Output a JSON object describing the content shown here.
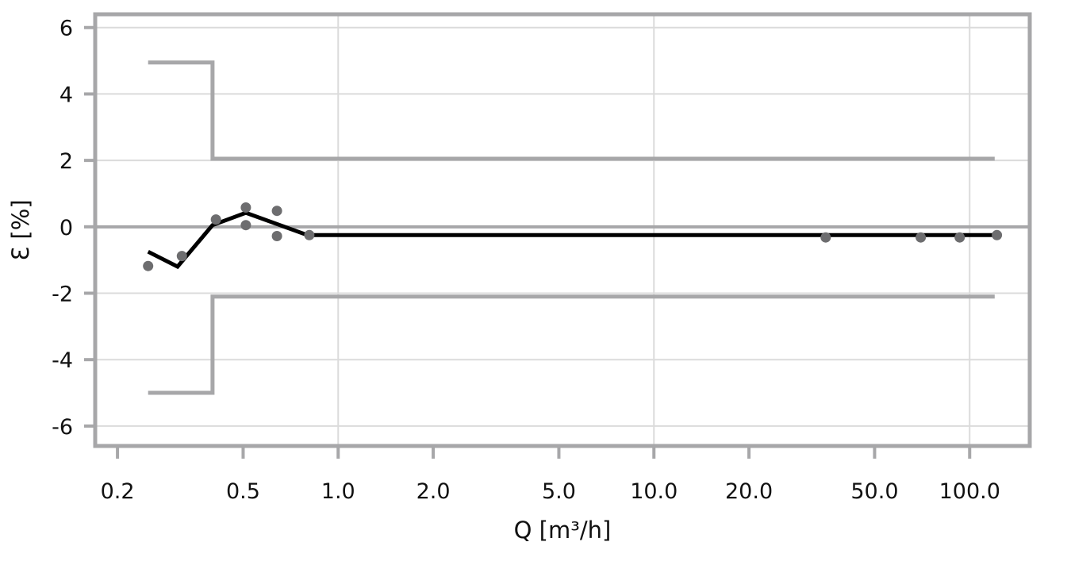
{
  "chart_data": {
    "type": "scatter",
    "xlabel": "Q [m³/h]",
    "ylabel": "Ɛ [%]",
    "x_scale": "log",
    "xlim": [
      0.17,
      155
    ],
    "ylim": [
      -6.6,
      6.4
    ],
    "x_ticks": [
      0.2,
      0.5,
      1.0,
      2.0,
      5.0,
      10.0,
      20.0,
      50.0,
      100.0
    ],
    "x_tick_labels": [
      "0.2",
      "0.5",
      "1.0",
      "2.0",
      "5.0",
      "10.0",
      "20.0",
      "50.0",
      "100.0"
    ],
    "y_ticks": [
      6,
      4,
      2,
      0,
      -2,
      -4,
      -6
    ],
    "y_tick_labels": [
      "6",
      "4",
      "2",
      "0",
      "-2",
      "-4",
      "-6"
    ],
    "grid": true,
    "series": [
      {
        "kind": "limit-upper",
        "color": "#a7a7a9",
        "x": [
          0.25,
          0.4,
          0.4,
          120
        ],
        "y": [
          4.95,
          4.95,
          2.05,
          2.05
        ]
      },
      {
        "kind": "limit-lower",
        "color": "#a7a7a9",
        "x": [
          0.25,
          0.4,
          0.4,
          120
        ],
        "y": [
          -5.0,
          -5.0,
          -2.1,
          -2.1
        ]
      },
      {
        "kind": "error-curve",
        "color": "#000000",
        "x": [
          0.25,
          0.31,
          0.4,
          0.51,
          0.8,
          122
        ],
        "y": [
          -0.75,
          -1.2,
          0.05,
          0.42,
          -0.25,
          -0.25
        ]
      },
      {
        "kind": "measured-points",
        "color": "#6d6d6f",
        "x": [
          0.25,
          0.32,
          0.41,
          0.51,
          0.51,
          0.64,
          0.64,
          0.81,
          35,
          70,
          93,
          122
        ],
        "y": [
          -1.18,
          -0.88,
          0.22,
          0.58,
          0.05,
          0.48,
          -0.28,
          -0.25,
          -0.32,
          -0.32,
          -0.32,
          -0.25
        ]
      }
    ],
    "colors": {
      "frame": "#a7a7a9",
      "zero_line": "#a7a7a9",
      "grid": "#dbdbdb",
      "axis_text": "#111111"
    }
  }
}
